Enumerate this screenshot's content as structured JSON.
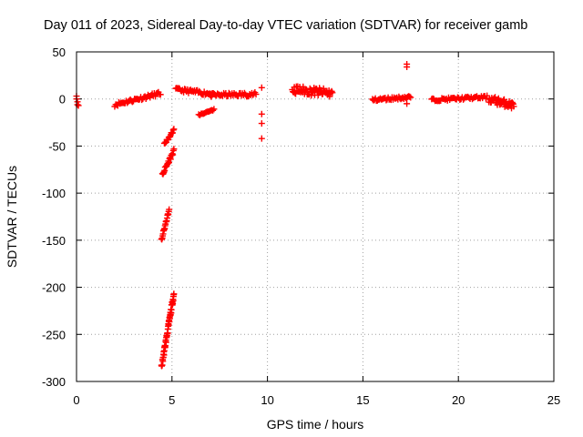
{
  "chart_data": {
    "type": "scatter",
    "title": "Day 011 of 2023, Sidereal Day-to-day VTEC variation (SDTVAR) for receiver gamb",
    "xlabel": "GPS time / hours",
    "ylabel": "SDTVAR / TECUs",
    "xlim": [
      0,
      25
    ],
    "ylim": [
      -300,
      50
    ],
    "xticks": [
      0,
      5,
      10,
      15,
      20,
      25
    ],
    "yticks": [
      50,
      0,
      -50,
      -100,
      -150,
      -200,
      -250,
      -300
    ],
    "xtick_labels": [
      "0",
      "5",
      "10",
      "15",
      "20",
      "25"
    ],
    "ytick_labels": [
      "50",
      "0",
      "-50",
      "-100",
      "-150",
      "-200",
      "-250",
      "-300"
    ],
    "grid": true,
    "marker": "+",
    "color": "#ff0000",
    "series": [
      {
        "name": "SDTVAR",
        "segments": [
          {
            "x": [
              0.0,
              0.0,
              0.05,
              0.05,
              0.1
            ],
            "y": [
              3,
              0,
              -3,
              -6,
              -7
            ]
          },
          {
            "x_range": [
              2.0,
              4.4
            ],
            "y_start": -6,
            "y_end": 6,
            "spread": 4,
            "n": 45
          },
          {
            "x_range": [
              5.2,
              7.2
            ],
            "y_start": 10,
            "y_end": 5,
            "spread": 4,
            "n": 40
          },
          {
            "x_range": [
              7.0,
              9.4
            ],
            "y_start": 4,
            "y_end": 5,
            "spread": 4,
            "n": 45
          },
          {
            "x_range": [
              6.4,
              7.2
            ],
            "y_start": -17,
            "y_end": -11,
            "spread": 2,
            "n": 14
          },
          {
            "x_range": [
              4.6,
              5.1
            ],
            "y_start": -48,
            "y_end": -33,
            "spread": 3,
            "n": 16
          },
          {
            "x_range": [
              4.5,
              5.1
            ],
            "y_start": -80,
            "y_end": -55,
            "spread": 4,
            "n": 22
          },
          {
            "x_range": [
              4.45,
              4.85
            ],
            "y_start": -150,
            "y_end": -118,
            "spread": 3,
            "n": 20
          },
          {
            "x_range": [
              4.45,
              5.1
            ],
            "y_start": -285,
            "y_end": -207,
            "spread": 6,
            "n": 55
          },
          {
            "x": [
              9.7,
              9.7,
              9.7,
              9.7
            ],
            "y": [
              12,
              -16,
              -26,
              -42
            ]
          },
          {
            "x_range": [
              11.3,
              13.4
            ],
            "y_start": 10,
            "y_end": 6,
            "spread": 9,
            "n": 60
          },
          {
            "x_range": [
              15.5,
              17.5
            ],
            "y_start": -1,
            "y_end": 2,
            "spread": 3,
            "n": 40
          },
          {
            "x": [
              17.3,
              17.3,
              17.3
            ],
            "y": [
              34,
              37,
              -5
            ]
          },
          {
            "x_range": [
              18.6,
              21.5
            ],
            "y_start": -1,
            "y_end": 2,
            "spread": 3,
            "n": 50
          },
          {
            "x_range": [
              21.6,
              22.9
            ],
            "y_start": 0,
            "y_end": -7,
            "spread": 8,
            "n": 45
          }
        ]
      }
    ]
  }
}
